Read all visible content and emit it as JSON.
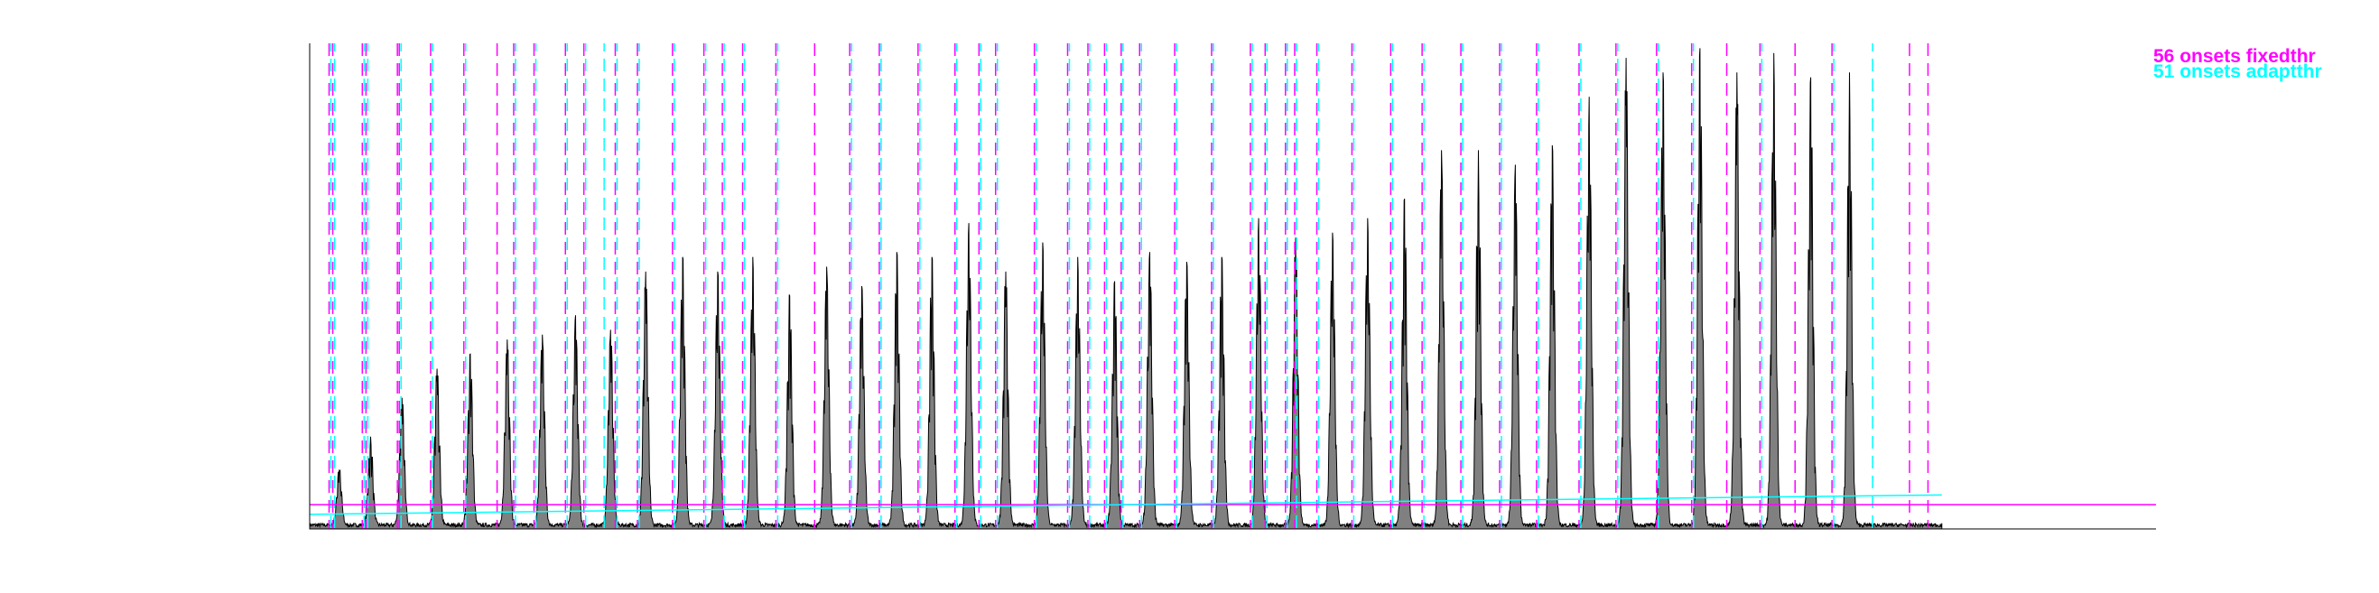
{
  "chart_data": {
    "type": "area",
    "title": "",
    "xlabel": "",
    "ylabel": "",
    "xlim": [
      0,
      1000
    ],
    "ylim": [
      0,
      1
    ],
    "axes_visible": [
      "left",
      "bottom"
    ],
    "ticks": "none",
    "grid": false,
    "legend_placement": "top-right",
    "onset_times": [
      11,
      13,
      29,
      31,
      48,
      49,
      66,
      84,
      102,
      111,
      122,
      139,
      149,
      159,
      166,
      178,
      197,
      214,
      224,
      235,
      253,
      274,
      293,
      309,
      330,
      350,
      363,
      372,
      393,
      411,
      422,
      431,
      440,
      450,
      469,
      489,
      510,
      518,
      529,
      534,
      546,
      565,
      586,
      603,
      624,
      645,
      665,
      688,
      708,
      730,
      749,
      768,
      786,
      805,
      825,
      846,
      867,
      877
    ],
    "bursts": [
      {
        "t": 16,
        "peak": 0.12
      },
      {
        "t": 33,
        "peak": 0.19
      },
      {
        "t": 50,
        "peak": 0.27
      },
      {
        "t": 69,
        "peak": 0.33
      },
      {
        "t": 87,
        "peak": 0.36
      },
      {
        "t": 107,
        "peak": 0.39
      },
      {
        "t": 126,
        "peak": 0.4
      },
      {
        "t": 144,
        "peak": 0.44
      },
      {
        "t": 163,
        "peak": 0.41
      },
      {
        "t": 182,
        "peak": 0.53
      },
      {
        "t": 202,
        "peak": 0.56
      },
      {
        "t": 221,
        "peak": 0.53
      },
      {
        "t": 240,
        "peak": 0.56
      },
      {
        "t": 260,
        "peak": 0.48
      },
      {
        "t": 280,
        "peak": 0.54
      },
      {
        "t": 299,
        "peak": 0.5
      },
      {
        "t": 318,
        "peak": 0.57
      },
      {
        "t": 337,
        "peak": 0.56
      },
      {
        "t": 357,
        "peak": 0.63
      },
      {
        "t": 377,
        "peak": 0.53
      },
      {
        "t": 397,
        "peak": 0.59
      },
      {
        "t": 416,
        "peak": 0.56
      },
      {
        "t": 436,
        "peak": 0.51
      },
      {
        "t": 455,
        "peak": 0.57
      },
      {
        "t": 475,
        "peak": 0.55
      },
      {
        "t": 494,
        "peak": 0.56
      },
      {
        "t": 514,
        "peak": 0.64
      },
      {
        "t": 534,
        "peak": 0.6
      },
      {
        "t": 554,
        "peak": 0.61
      },
      {
        "t": 573,
        "peak": 0.64
      },
      {
        "t": 593,
        "peak": 0.68
      },
      {
        "t": 613,
        "peak": 0.78
      },
      {
        "t": 633,
        "peak": 0.78
      },
      {
        "t": 653,
        "peak": 0.75
      },
      {
        "t": 673,
        "peak": 0.79
      },
      {
        "t": 693,
        "peak": 0.89
      },
      {
        "t": 713,
        "peak": 0.97
      },
      {
        "t": 733,
        "peak": 0.94
      },
      {
        "t": 753,
        "peak": 0.99
      },
      {
        "t": 773,
        "peak": 0.94
      },
      {
        "t": 793,
        "peak": 0.98
      },
      {
        "t": 813,
        "peak": 0.93
      },
      {
        "t": 834,
        "peak": 0.94
      }
    ],
    "signal_end": 884,
    "series": [
      {
        "name": "56 onsets fixedthr",
        "color": "#ff00ff",
        "threshold": 0.05
      },
      {
        "name": "51 onsets adaptthr",
        "color": "#00ffff",
        "threshold_start": 0.03,
        "threshold_end": 0.07
      }
    ],
    "fixedthr_onset_indices": [
      0,
      1,
      2,
      3,
      4,
      5,
      6,
      7,
      8,
      9,
      10,
      11,
      12,
      14,
      15,
      16,
      17,
      18,
      19,
      20,
      21,
      22,
      23,
      24,
      25,
      26,
      27,
      28,
      29,
      30,
      31,
      32,
      33,
      34,
      35,
      36,
      37,
      38,
      39,
      40,
      41,
      42,
      43,
      44,
      45,
      46,
      47,
      48,
      49,
      50,
      51,
      52,
      53,
      54,
      56,
      57
    ],
    "adaptthr_onset_indices": [
      0,
      1,
      2,
      3,
      5,
      6,
      7,
      9,
      10,
      11,
      12,
      13,
      14,
      15,
      16,
      17,
      18,
      19,
      20,
      22,
      23,
      24,
      25,
      26,
      27,
      28,
      29,
      30,
      31,
      32,
      33,
      34,
      35,
      36,
      37,
      38,
      39,
      40,
      41,
      42,
      43,
      44,
      45,
      46,
      47,
      48,
      49,
      50,
      52,
      54,
      55
    ],
    "colors": {
      "signal_fill": "#808080",
      "signal_line": "#000000",
      "axis": "#000000",
      "fixedthr": "#ff00ff",
      "adaptthr": "#00ffff"
    }
  },
  "legend": {
    "fixedthr_label": "56 onsets fixedthr",
    "adaptthr_label": "51 onsets adaptthr"
  }
}
